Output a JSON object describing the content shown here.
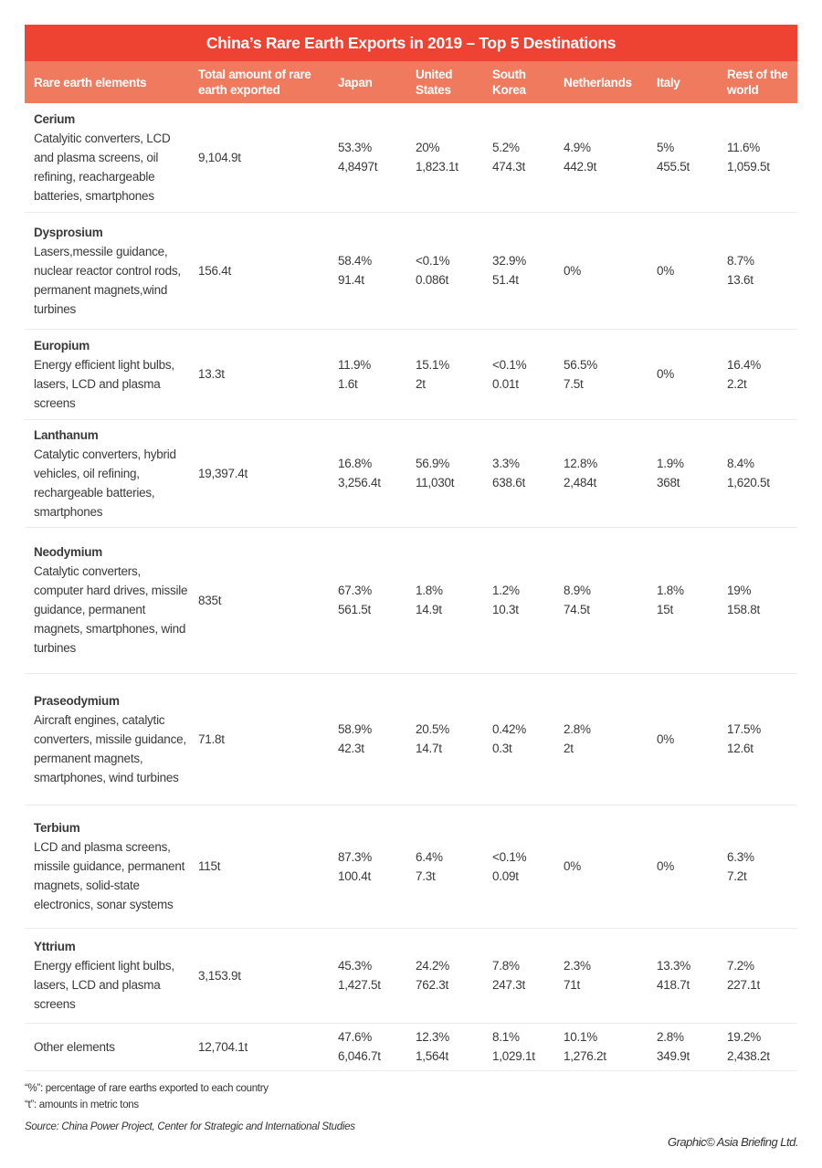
{
  "title": "China’s Rare Earth Exports in 2019 – Top 5 Destinations",
  "colors": {
    "title_bg": "#ee4232",
    "header_bg": "#f07a5e"
  },
  "columns": [
    "Rare earth elements",
    "Total amount of rare earth exported",
    "Japan",
    "United States",
    "South Korea",
    "Netherlands",
    "Italy",
    "Rest of the world"
  ],
  "rows": [
    {
      "element": "Cerium",
      "uses": "Catalyitic converters, LCD and plasma screens, oil refining, reachargeable batteries, smartphones",
      "total": "9,104.9t",
      "values": [
        [
          "53.3%",
          "4,8497t"
        ],
        [
          "20%",
          "1,823.1t"
        ],
        [
          "5.2%",
          "474.3t"
        ],
        [
          "4.9%",
          "442.9t"
        ],
        [
          "5%",
          "455.5t"
        ],
        [
          "11.6%",
          "1,059.5t"
        ]
      ]
    },
    {
      "element": "Dysprosium",
      "uses": "Lasers,messile guidance, nuclear reactor control rods, permanent magnets,wind turbines",
      "total": "156.4t",
      "values": [
        [
          "58.4%",
          "91.4t"
        ],
        [
          "<0.1%",
          "0.086t"
        ],
        [
          "32.9%",
          "51.4t"
        ],
        [
          "0%",
          ""
        ],
        [
          "0%",
          ""
        ],
        [
          "8.7%",
          "13.6t"
        ]
      ]
    },
    {
      "element": "Europium",
      "uses": "Energy efficient light bulbs, lasers, LCD and plasma screens",
      "total": "13.3t",
      "values": [
        [
          "11.9%",
          "1.6t"
        ],
        [
          "15.1%",
          "2t"
        ],
        [
          "<0.1%",
          "0.01t"
        ],
        [
          "56.5%",
          "7.5t"
        ],
        [
          "0%",
          ""
        ],
        [
          "16.4%",
          "2.2t"
        ]
      ]
    },
    {
      "element": "Lanthanum",
      "uses": "Catalytic converters, hybrid vehicles, oil refining, rechargeable batteries, smartphones",
      "total": "19,397.4t",
      "values": [
        [
          "16.8%",
          "3,256.4t"
        ],
        [
          "56.9%",
          "11,030t"
        ],
        [
          "3.3%",
          "638.6t"
        ],
        [
          "12.8%",
          "2,484t"
        ],
        [
          "1.9%",
          "368t"
        ],
        [
          "8.4%",
          "1,620.5t"
        ]
      ]
    },
    {
      "element": "Neodymium",
      "uses": "Catalytic converters, computer hard drives, missile guidance, permanent magnets, smartphones, wind turbines",
      "total": "835t",
      "values": [
        [
          "67.3%",
          "561.5t"
        ],
        [
          "1.8%",
          "14.9t"
        ],
        [
          "1.2%",
          "10.3t"
        ],
        [
          "8.9%",
          "74.5t"
        ],
        [
          "1.8%",
          "15t"
        ],
        [
          "19%",
          "158.8t"
        ]
      ]
    },
    {
      "element": "Praseodymium",
      "uses": "Aircraft engines, catalytic converters, missile guidance, permanent magnets, smartphones, wind turbines",
      "total": "71.8t",
      "values": [
        [
          "58.9%",
          "42.3t"
        ],
        [
          "20.5%",
          "14.7t"
        ],
        [
          "0.42%",
          "0.3t"
        ],
        [
          "2.8%",
          "2t"
        ],
        [
          "0%",
          ""
        ],
        [
          "17.5%",
          "12.6t"
        ]
      ]
    },
    {
      "element": "Terbium",
      "uses": "LCD and plasma screens, missile guidance, permanent magnets, solid-state electronics, sonar systems",
      "total": "115t",
      "values": [
        [
          "87.3%",
          "100.4t"
        ],
        [
          "6.4%",
          "7.3t"
        ],
        [
          "<0.1%",
          "0.09t"
        ],
        [
          "0%",
          ""
        ],
        [
          "0%",
          ""
        ],
        [
          "6.3%",
          "7.2t"
        ]
      ]
    },
    {
      "element": "Yttrium",
      "uses": "Energy efficient light bulbs, lasers, LCD and plasma screens",
      "total": "3,153.9t",
      "values": [
        [
          "45.3%",
          "1,427.5t"
        ],
        [
          "24.2%",
          "762.3t"
        ],
        [
          "7.8%",
          "247.3t"
        ],
        [
          "2.3%",
          "71t"
        ],
        [
          "13.3%",
          "418.7t"
        ],
        [
          "7.2%",
          "227.1t"
        ]
      ]
    },
    {
      "element": "",
      "label": "Other elements",
      "uses": "",
      "total": "12,704.1t",
      "values": [
        [
          "47.6%",
          "6,046.7t"
        ],
        [
          "12.3%",
          "1,564t"
        ],
        [
          "8.1%",
          "1,029.1t"
        ],
        [
          "10.1%",
          "1,276.2t"
        ],
        [
          "2.8%",
          "349.9t"
        ],
        [
          "19.2%",
          "2,438.2t"
        ]
      ]
    }
  ],
  "notes": [
    "“%”: percentage of rare earths exported to each country",
    "“t”: amounts in metric tons"
  ],
  "source": "Source: China Power Project, Center for Strategic and International Studies",
  "credit": "Graphic© Asia Briefing Ltd."
}
